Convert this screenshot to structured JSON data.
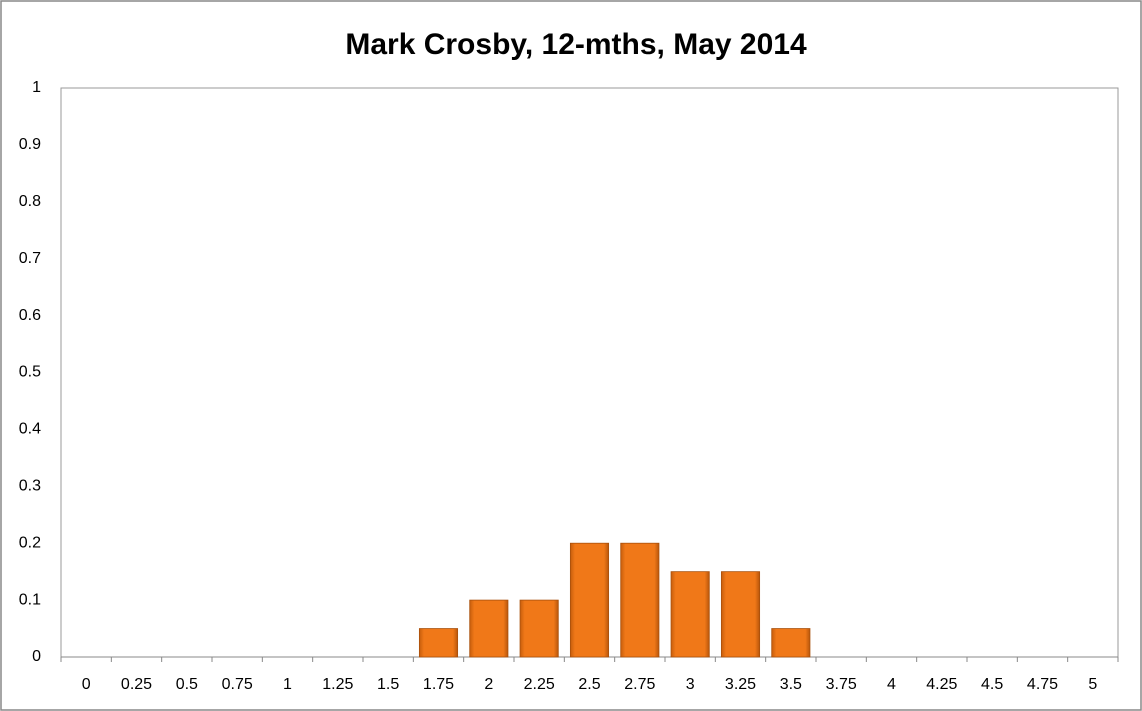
{
  "chart_data": {
    "type": "bar",
    "title": "Mark Crosby, 12-mths, May 2014",
    "categories": [
      "0",
      "0.25",
      "0.5",
      "0.75",
      "1",
      "1.25",
      "1.5",
      "1.75",
      "2",
      "2.25",
      "2.5",
      "2.75",
      "3",
      "3.25",
      "3.5",
      "3.75",
      "4",
      "4.25",
      "4.5",
      "4.75",
      "5"
    ],
    "values": [
      0,
      0,
      0,
      0,
      0,
      0,
      0,
      0.05,
      0.1,
      0.1,
      0.2,
      0.2,
      0.15,
      0.15,
      0.05,
      0,
      0,
      0,
      0,
      0,
      0
    ],
    "color": "#f07818",
    "ylim": [
      0,
      1
    ],
    "yticks": [
      0,
      0.1,
      0.2,
      0.3,
      0.4,
      0.5,
      0.6,
      0.7,
      0.8,
      0.9,
      1
    ],
    "grid": false
  }
}
